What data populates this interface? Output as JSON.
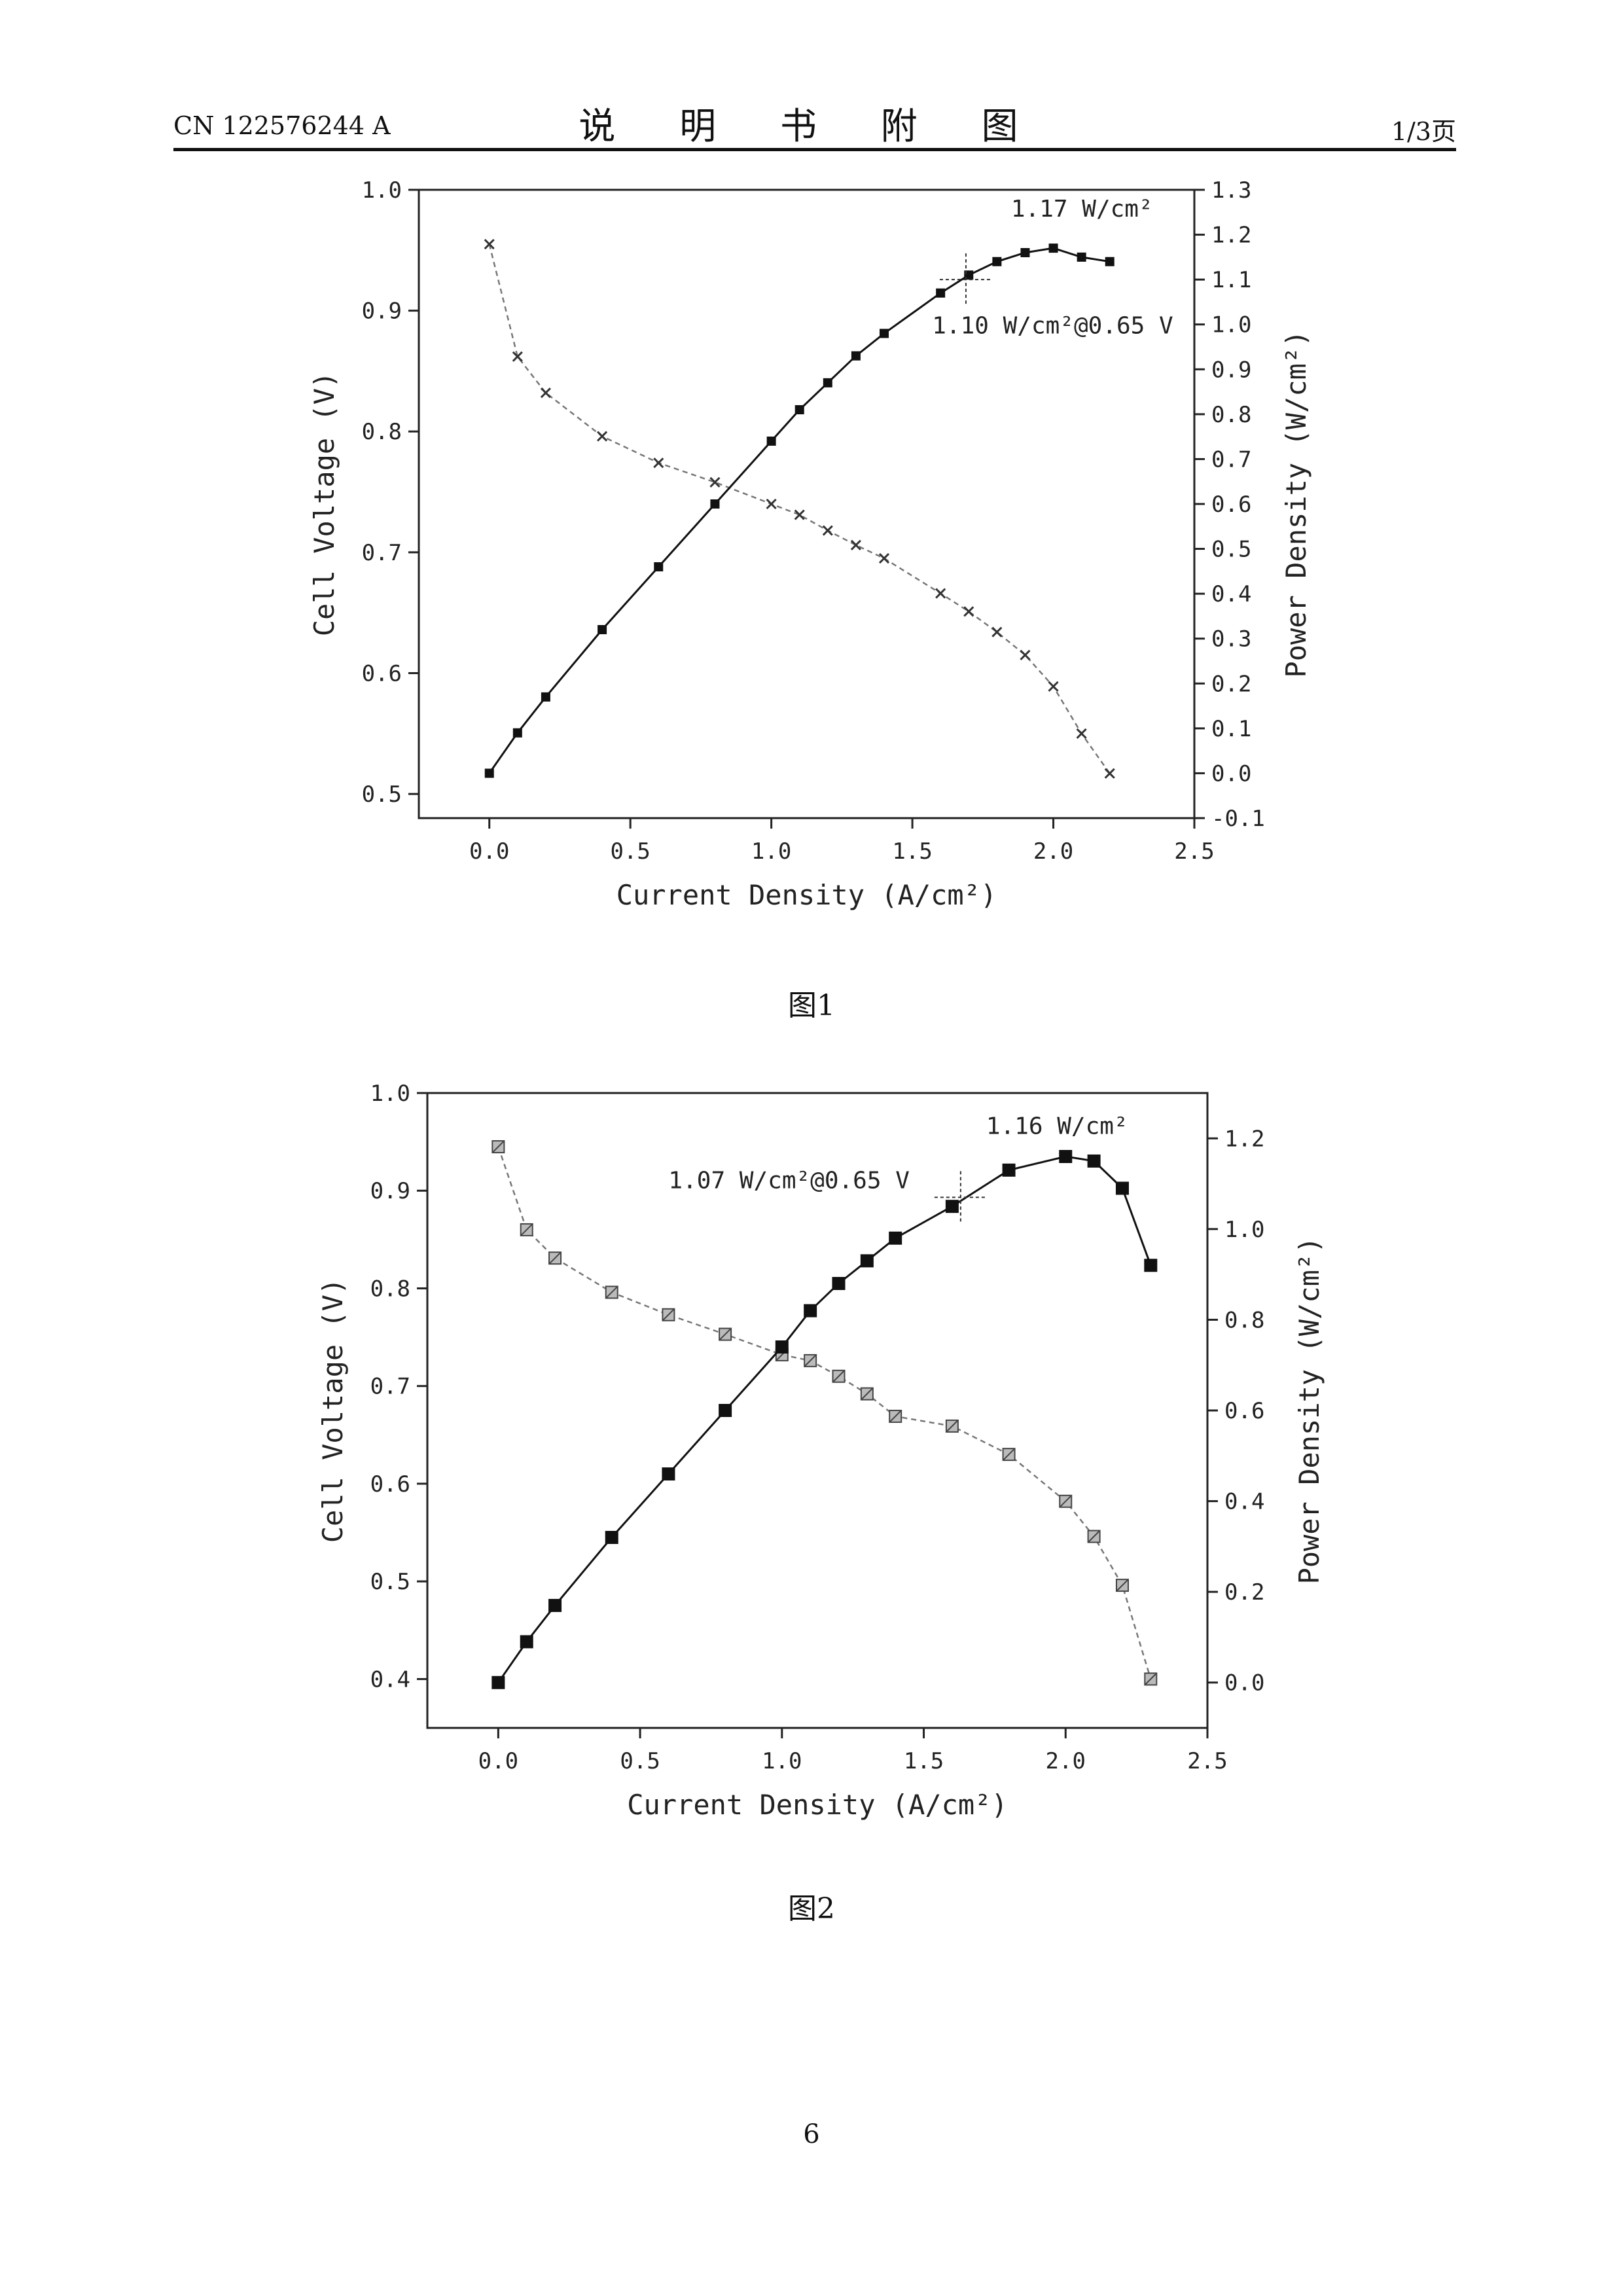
{
  "header": {
    "doc_number": "CN 122576244 A",
    "title": "说 明 书 附 图",
    "page_indicator": "1/3页"
  },
  "footer": {
    "page_number": "6"
  },
  "figures": [
    {
      "caption": "图1"
    },
    {
      "caption": "图2"
    }
  ],
  "chart_data": [
    {
      "type": "line",
      "xlabel": "Current Density (A/cm²)",
      "ylabel": "Cell Voltage (V)",
      "y2label": "Power Density (W/cm²)",
      "xlim": [
        -0.25,
        2.5
      ],
      "ylim": [
        0.48,
        1.0
      ],
      "y2lim": [
        -0.1,
        1.3
      ],
      "xticks": [
        "0.0",
        "0.5",
        "1.0",
        "1.5",
        "2.0",
        "2.5"
      ],
      "xtick_values": [
        0,
        0.5,
        1.0,
        1.5,
        2.0,
        2.5
      ],
      "yticks": [
        "0.5",
        "0.6",
        "0.7",
        "0.8",
        "0.9",
        "1.0"
      ],
      "ytick_values": [
        0.5,
        0.6,
        0.7,
        0.8,
        0.9,
        1.0
      ],
      "y2ticks": [
        "-0.1",
        "0.0",
        "0.1",
        "0.2",
        "0.3",
        "0.4",
        "0.5",
        "0.6",
        "0.7",
        "0.8",
        "0.9",
        "1.0",
        "1.1",
        "1.2",
        "1.3"
      ],
      "y2tick_values": [
        -0.1,
        0,
        0.1,
        0.2,
        0.3,
        0.4,
        0.5,
        0.6,
        0.7,
        0.8,
        0.9,
        1.0,
        1.1,
        1.2,
        1.3
      ],
      "series": [
        {
          "axis": "left",
          "marker": "x",
          "line": "dashed",
          "x": [
            0.0,
            0.1,
            0.2,
            0.4,
            0.6,
            0.8,
            1.0,
            1.1,
            1.2,
            1.3,
            1.4,
            1.6,
            1.7,
            1.8,
            1.9,
            2.0,
            2.1,
            2.2
          ],
          "y": [
            0.955,
            0.862,
            0.832,
            0.796,
            0.774,
            0.758,
            0.74,
            0.731,
            0.718,
            0.706,
            0.695,
            0.666,
            0.651,
            0.634,
            0.615,
            0.589,
            0.55,
            0.517
          ]
        },
        {
          "axis": "right",
          "marker": "square",
          "line": "solid",
          "x": [
            0.0,
            0.1,
            0.2,
            0.4,
            0.6,
            0.8,
            1.0,
            1.1,
            1.2,
            1.3,
            1.4,
            1.6,
            1.7,
            1.8,
            1.9,
            2.0,
            2.1,
            2.2
          ],
          "y": [
            0.0,
            0.09,
            0.17,
            0.32,
            0.46,
            0.6,
            0.74,
            0.81,
            0.87,
            0.93,
            0.98,
            1.07,
            1.11,
            1.14,
            1.16,
            1.17,
            1.15,
            1.14
          ]
        }
      ],
      "annotations": [
        {
          "text": "1.17 W/cm²",
          "x": 1.85,
          "y2": 1.24
        },
        {
          "text": "1.10 W/cm²@0.65 V",
          "x": 1.57,
          "y2": 0.98
        }
      ],
      "crosshair": {
        "x": 1.69,
        "y2": 1.1
      }
    },
    {
      "type": "line",
      "xlabel": "Current Density (A/cm²)",
      "ylabel": "Cell Voltage (V)",
      "y2label": "Power Density (W/cm²)",
      "xlim": [
        -0.25,
        2.5
      ],
      "ylim": [
        0.35,
        1.0
      ],
      "y2lim": [
        -0.1,
        1.3
      ],
      "xticks": [
        "0.0",
        "0.5",
        "1.0",
        "1.5",
        "2.0",
        "2.5"
      ],
      "xtick_values": [
        0,
        0.5,
        1.0,
        1.5,
        2.0,
        2.5
      ],
      "yticks": [
        "0.4",
        "0.5",
        "0.6",
        "0.7",
        "0.8",
        "0.9",
        "1.0"
      ],
      "ytick_values": [
        0.4,
        0.5,
        0.6,
        0.7,
        0.8,
        0.9,
        1.0
      ],
      "y2ticks": [
        "0.0",
        "0.2",
        "0.4",
        "0.6",
        "0.8",
        "1.0",
        "1.2"
      ],
      "y2tick_values": [
        0,
        0.2,
        0.4,
        0.6,
        0.8,
        1.0,
        1.2
      ],
      "series": [
        {
          "axis": "left",
          "marker": "hatched-square",
          "line": "dashed",
          "x": [
            0.0,
            0.1,
            0.2,
            0.4,
            0.6,
            0.8,
            1.0,
            1.1,
            1.2,
            1.3,
            1.4,
            1.6,
            1.8,
            2.0,
            2.1,
            2.2,
            2.3
          ],
          "y": [
            0.945,
            0.86,
            0.831,
            0.796,
            0.773,
            0.753,
            0.732,
            0.726,
            0.71,
            0.692,
            0.669,
            0.659,
            0.63,
            0.582,
            0.546,
            0.496,
            0.4
          ]
        },
        {
          "axis": "right",
          "marker": "square",
          "line": "solid",
          "x": [
            0.0,
            0.1,
            0.2,
            0.4,
            0.6,
            0.8,
            1.0,
            1.1,
            1.2,
            1.3,
            1.4,
            1.6,
            1.8,
            2.0,
            2.1,
            2.2,
            2.3
          ],
          "y": [
            0.0,
            0.09,
            0.17,
            0.32,
            0.46,
            0.6,
            0.74,
            0.82,
            0.88,
            0.93,
            0.98,
            1.05,
            1.13,
            1.16,
            1.15,
            1.09,
            0.92
          ]
        }
      ],
      "annotations": [
        {
          "text": "1.16 W/cm²",
          "x": 1.72,
          "y2": 1.21
        },
        {
          "text": "1.07 W/cm²@0.65 V",
          "x": 0.6,
          "y2": 1.09
        }
      ],
      "crosshair": {
        "x": 1.63,
        "y2": 1.07
      }
    }
  ]
}
